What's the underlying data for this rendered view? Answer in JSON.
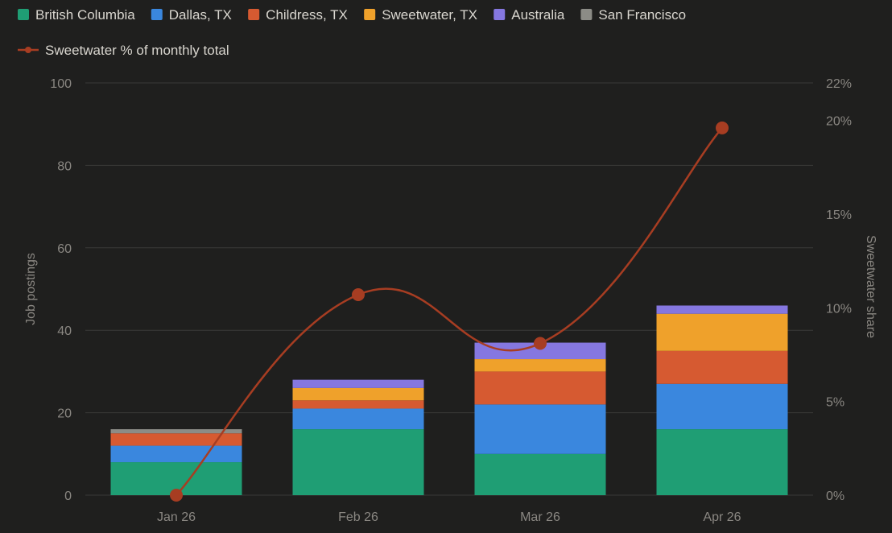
{
  "chart_data": {
    "type": "bar",
    "stacked": true,
    "categories": [
      "Jan 26",
      "Feb 26",
      "Mar 26",
      "Apr 26"
    ],
    "series": [
      {
        "name": "British Columbia",
        "color": "#1f9e74",
        "values": [
          8,
          16,
          10,
          16
        ]
      },
      {
        "name": "Dallas, TX",
        "color": "#3a87de",
        "values": [
          4,
          5,
          12,
          11
        ]
      },
      {
        "name": "Childress, TX",
        "color": "#d65a31",
        "values": [
          3,
          2,
          8,
          8
        ]
      },
      {
        "name": "Sweetwater, TX",
        "color": "#efa12b",
        "values": [
          0,
          3,
          3,
          9
        ]
      },
      {
        "name": "Australia",
        "color": "#8577e0",
        "values": [
          0,
          2,
          4,
          2
        ]
      },
      {
        "name": "San Francisco",
        "color": "#8c8c86",
        "values": [
          1,
          0,
          0,
          0
        ]
      }
    ],
    "line_series": {
      "name": "Sweetwater % of monthly total",
      "color": "#a73d22",
      "axis": "right",
      "values": [
        0,
        10.7,
        8.1,
        19.6
      ]
    },
    "y_left": {
      "label": "Job postings",
      "min": 0,
      "max": 100,
      "ticks": [
        "0",
        "20",
        "40",
        "60",
        "80",
        "100"
      ]
    },
    "y_right": {
      "label": "Sweetwater share",
      "min": 0,
      "max": 22,
      "ticks": [
        {
          "value": 0,
          "label": "0%"
        },
        {
          "value": 5,
          "label": "5%"
        },
        {
          "value": 10,
          "label": "10%"
        },
        {
          "value": 15,
          "label": "15%"
        },
        {
          "value": 20,
          "label": "20%"
        },
        {
          "value": 22,
          "label": "22%"
        }
      ]
    },
    "grid": true,
    "legend_position": "top-left"
  }
}
